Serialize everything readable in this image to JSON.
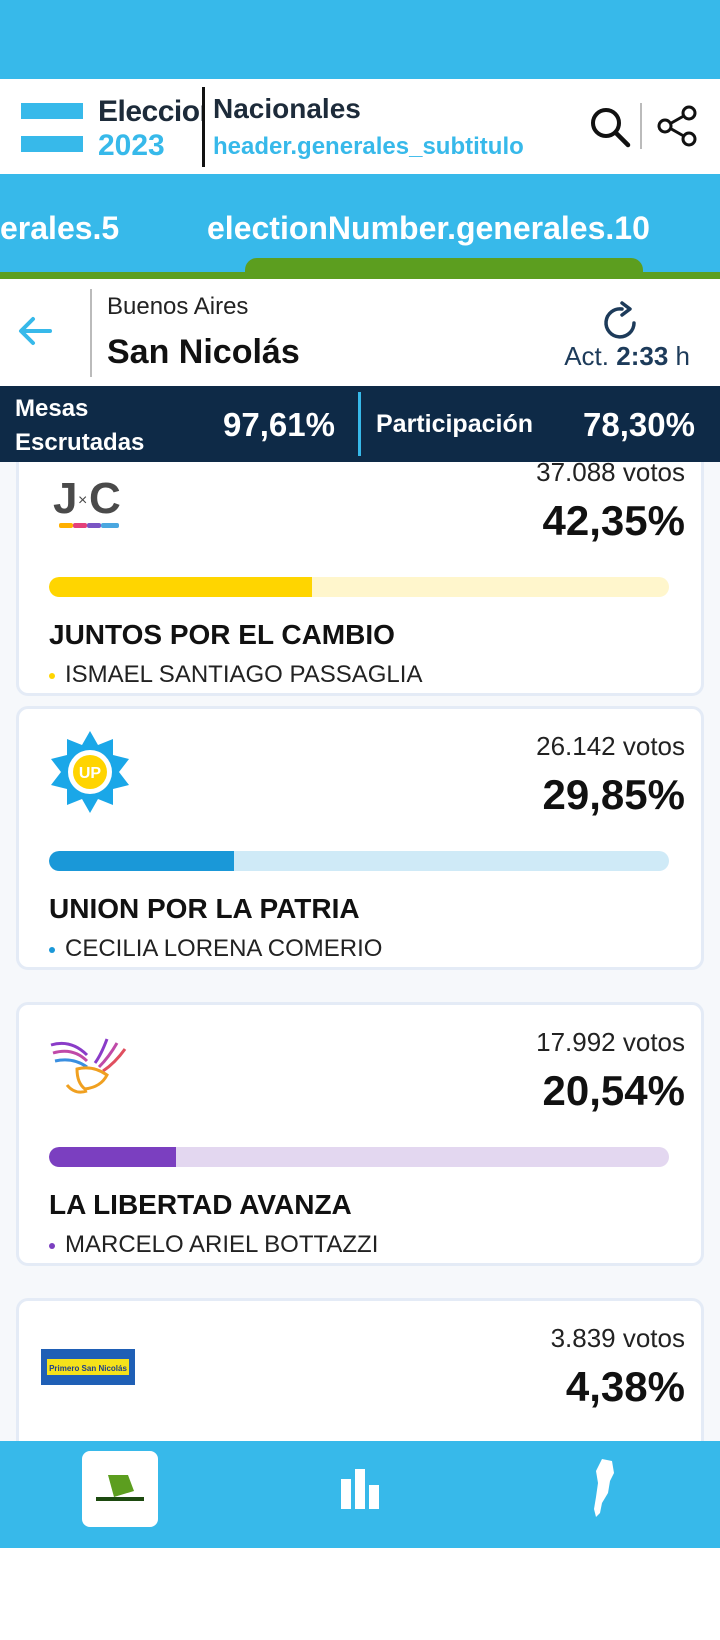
{
  "header": {
    "logo_line1": "Eleccion",
    "logo_line2": "2023",
    "title": "Nacionales",
    "subtitle": "header.generales_subtitulo"
  },
  "tabs": {
    "previous_label": "erales.5",
    "active_label": "electionNumber.generales.10"
  },
  "location": {
    "province": "Buenos Aires",
    "city": "San Nicolás",
    "update_prefix": "Act.",
    "update_time": "2:33",
    "update_suffix": "h"
  },
  "stats": {
    "mesas_label": "Mesas Escrutadas",
    "mesas_value": "97,61%",
    "participacion_label": "Participación",
    "participacion_value": "78,30%"
  },
  "results": [
    {
      "party": "JUNTOS POR EL CAMBIO",
      "candidate": "ISMAEL SANTIAGO PASSAGLIA",
      "votes": "37.088 votos",
      "percentage": "42,35%",
      "share": 0.4235,
      "logo_text": "J×C",
      "color": "#ffd500",
      "track_color": "#fff6cc"
    },
    {
      "party": "UNION POR LA PATRIA",
      "candidate": "CECILIA LORENA COMERIO",
      "votes": "26.142 votos",
      "percentage": "29,85%",
      "share": 0.2985,
      "logo_text": "UP",
      "color": "#1a98d8",
      "track_color": "#cfeaf7"
    },
    {
      "party": "LA LIBERTAD AVANZA",
      "candidate": "MARCELO ARIEL BOTTAZZI",
      "votes": "17.992 votos",
      "percentage": "20,54%",
      "share": 0.2054,
      "logo_text": "",
      "color": "#7b3fc0",
      "track_color": "#e3d7f0"
    },
    {
      "party": "",
      "candidate": "",
      "votes": "3.839 votos",
      "percentage": "4,38%",
      "share": 0.0438,
      "logo_text": "Primero San Nicolás",
      "color": "#1f5fb5",
      "track_color": "#d8e4f5"
    }
  ],
  "nav": {
    "items": [
      "ballot-icon",
      "bar-chart-icon",
      "argentina-map-icon"
    ]
  },
  "colors": {
    "brand_blue": "#37b9ea",
    "navy": "#0e2a47",
    "green": "#5c9e1f"
  }
}
